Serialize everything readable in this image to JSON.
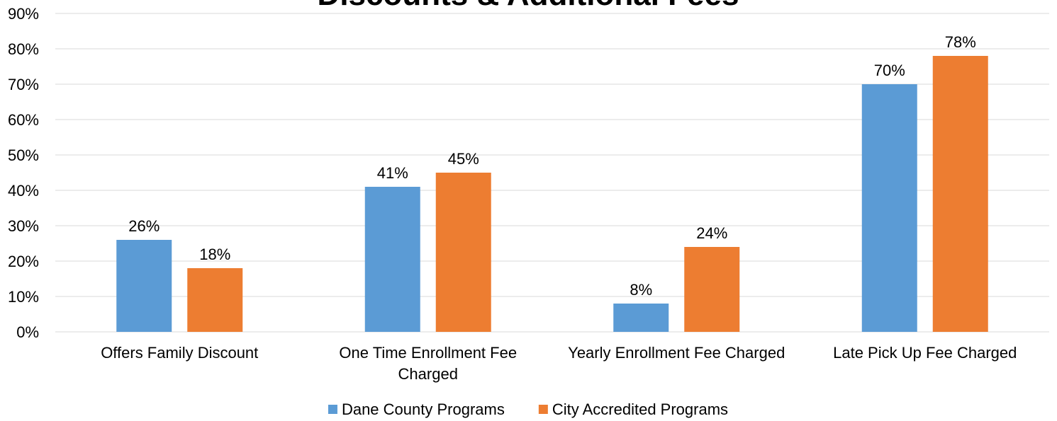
{
  "chart_data": {
    "type": "bar",
    "title": "Discounts & Additional Fees",
    "categories": [
      "Offers Family Discount",
      "One Time Enrollment Fee Charged",
      "Yearly Enrollment Fee Charged",
      "Late Pick Up Fee Charged"
    ],
    "series": [
      {
        "name": "Dane County Programs",
        "color": "#5b9bd5",
        "values": [
          26,
          41,
          8,
          70
        ],
        "value_labels": [
          "26%",
          "41%",
          "8%",
          "70%"
        ]
      },
      {
        "name": "City Accredited Programs",
        "color": "#ed7d31",
        "values": [
          18,
          45,
          24,
          78
        ],
        "value_labels": [
          "18%",
          "45%",
          "24%",
          "78%"
        ]
      }
    ],
    "ylim": [
      0,
      90
    ],
    "yticks": [
      {
        "value": 0,
        "label": "0%"
      },
      {
        "value": 10,
        "label": "10%"
      },
      {
        "value": 20,
        "label": "20%"
      },
      {
        "value": 30,
        "label": "30%"
      },
      {
        "value": 40,
        "label": "40%"
      },
      {
        "value": 50,
        "label": "50%"
      },
      {
        "value": 60,
        "label": "60%"
      },
      {
        "value": 70,
        "label": "70%"
      },
      {
        "value": 80,
        "label": "80%"
      },
      {
        "value": 90,
        "label": "90%"
      }
    ],
    "grid": true,
    "legend": "bottom"
  }
}
